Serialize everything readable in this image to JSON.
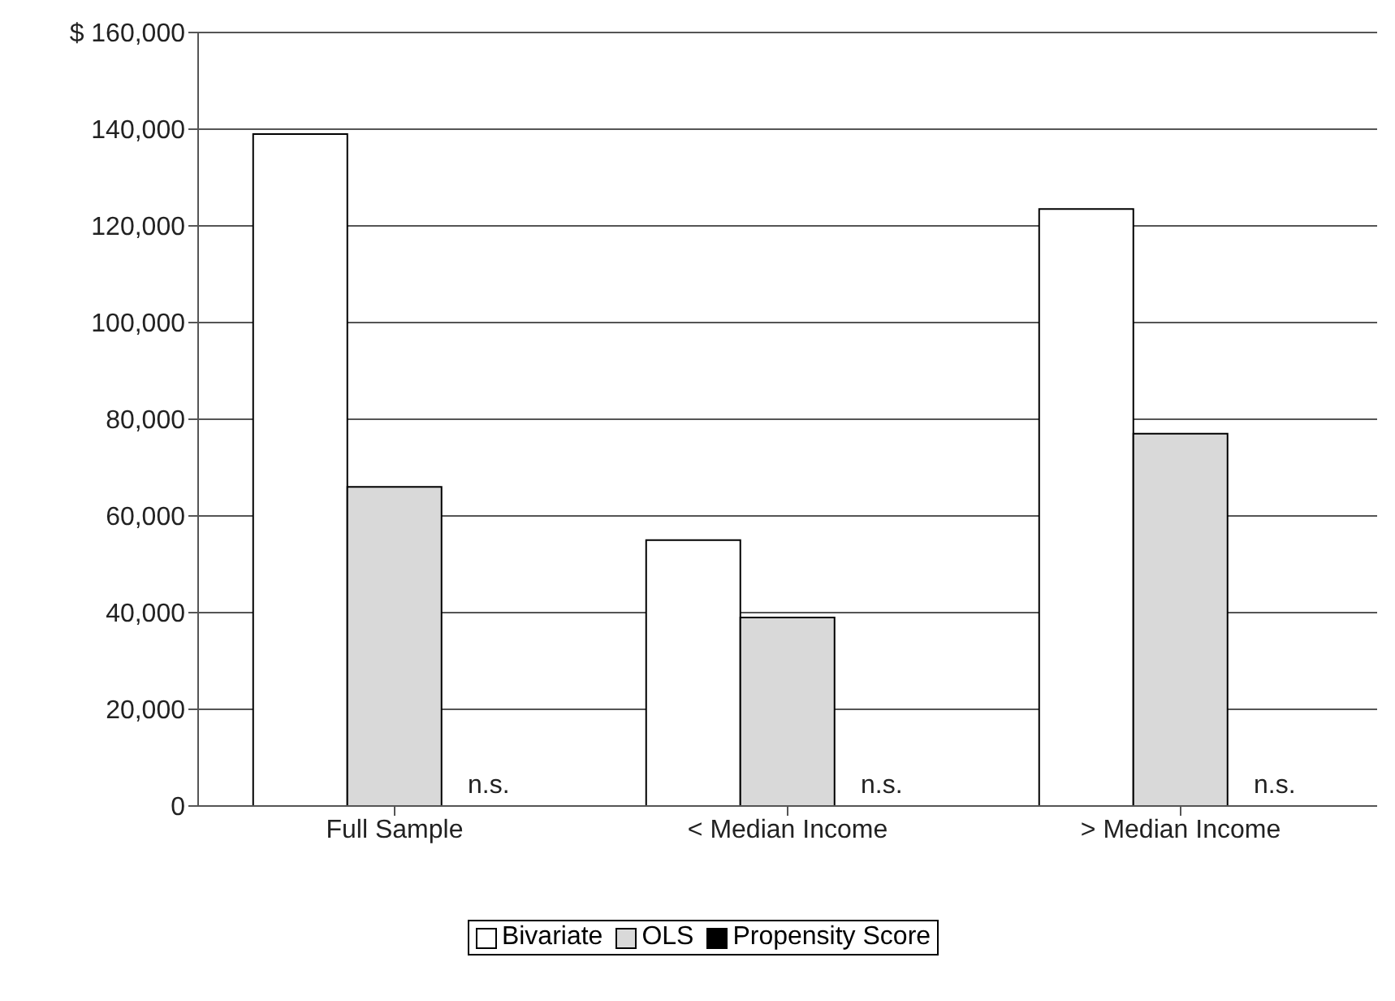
{
  "chart_data": {
    "type": "bar",
    "categories": [
      "Full Sample",
      "< Median Income",
      "> Median Income"
    ],
    "series": [
      {
        "name": "Bivariate",
        "color": "#ffffff",
        "values": [
          139000,
          55000,
          123500
        ]
      },
      {
        "name": "OLS",
        "color": "#d9d9d9",
        "values": [
          66000,
          39000,
          77000
        ]
      },
      {
        "name": "Propensity Score",
        "color": "#000000",
        "values": [
          null,
          null,
          null
        ],
        "value_labels": [
          "n.s.",
          "n.s.",
          "n.s."
        ]
      }
    ],
    "ylim": [
      0,
      160000
    ],
    "yticks": [
      0,
      {
        "value": 20000,
        "label": "20,000"
      },
      {
        "value": 40000,
        "label": "40,000"
      },
      {
        "value": 60000,
        "label": "60,000"
      },
      {
        "value": 80000,
        "label": "80,000"
      },
      {
        "value": 100000,
        "label": "100,000"
      },
      {
        "value": 120000,
        "label": "120,000"
      },
      {
        "value": 140000,
        "label": "140,000"
      },
      {
        "value": 160000,
        "label": "$ 160,000"
      }
    ],
    "grid": "y",
    "legend": "bottom"
  }
}
